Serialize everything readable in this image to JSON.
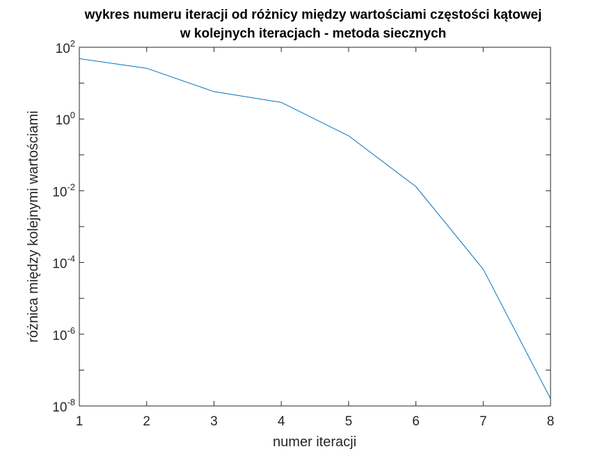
{
  "chart_data": {
    "type": "line",
    "title": "wykres numeru iteracji od różnicy między wartościami częstości kątowej",
    "subtitle": "w kolejnych iteracjach - metoda siecznych",
    "xlabel": "numer iteracji",
    "ylabel": "różnica między kolejnymi wartościami",
    "x": [
      1,
      2,
      3,
      4,
      5,
      6,
      7,
      8
    ],
    "series": [
      {
        "values": [
          48,
          26,
          5.8,
          2.9,
          0.34,
          0.013,
          6.5e-05,
          1.6e-08
        ],
        "color": "#0072bd"
      }
    ],
    "xlim": [
      1,
      8
    ],
    "ylim": [
      1e-08,
      100
    ],
    "yscale": "log",
    "xticks": [
      1,
      2,
      3,
      4,
      5,
      6,
      7,
      8
    ],
    "xtick_labels": [
      "1",
      "2",
      "3",
      "4",
      "5",
      "6",
      "7",
      "8"
    ],
    "yticks": [
      {
        "base": "10",
        "exp": "-8"
      },
      {
        "base": "10",
        "exp": "-6"
      },
      {
        "base": "10",
        "exp": "-4"
      },
      {
        "base": "10",
        "exp": "-2"
      },
      {
        "base": "10",
        "exp": "0"
      },
      {
        "base": "10",
        "exp": "2"
      }
    ],
    "grid": false,
    "box": true
  }
}
